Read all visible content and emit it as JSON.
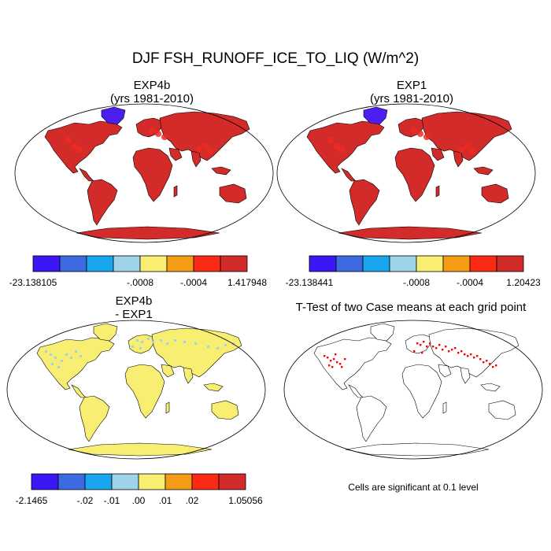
{
  "figure": {
    "title": "DJF FSH_RUNOFF_ICE_TO_LIQ (W/m^2)"
  },
  "panels": [
    {
      "id": "exp4b",
      "title_line1": "EXP4b",
      "title_line2": "(yrs 1981-2010)",
      "fill": "#d32a2a",
      "highlight": "#ee2a22",
      "greenland": "#4a1ff0",
      "colorbar": {
        "colors": [
          "#3b17f5",
          "#3d6ae0",
          "#1aa6ee",
          "#9fd3ea",
          "#f8ee72",
          "#f59c16",
          "#fb2a14",
          "#d12b2b"
        ],
        "labels": [
          "-23.138105",
          "-.0008",
          "-.0004",
          "1.417948"
        ]
      }
    },
    {
      "id": "exp1",
      "title_line1": "EXP1",
      "title_line2": "(yrs 1981-2010)",
      "fill": "#d32a2a",
      "highlight": "#ee2a22",
      "greenland": "#4a1ff0",
      "colorbar": {
        "colors": [
          "#3b17f5",
          "#3d6ae0",
          "#1aa6ee",
          "#9fd3ea",
          "#f8ee72",
          "#f59c16",
          "#fb2a14",
          "#d12b2b"
        ],
        "labels": [
          "-23.138441",
          "-.0008",
          "-.0004",
          "1.20423"
        ]
      }
    },
    {
      "id": "diff",
      "title_line1": "EXP4b",
      "title_line2": "- EXP1",
      "fill": "#f8ee72",
      "highlight": "#9fd3ea",
      "greenland": "#f8ee72",
      "colorbar": {
        "colors": [
          "#3b17f5",
          "#3d6ae0",
          "#1aa6ee",
          "#9fd3ea",
          "#f8ee72",
          "#f59c16",
          "#fb2a14",
          "#d12b2b"
        ],
        "labels": [
          "-2.1465",
          "-.02",
          "-.01",
          ".00",
          ".01",
          ".02",
          "1.05056"
        ]
      }
    },
    {
      "id": "ttest",
      "title_line1": "T-Test of two Case means at each grid point",
      "title_line2": "",
      "fill": "#ffffff",
      "highlight": "#ff0000",
      "greenland": "#ffffff",
      "note": "Cells are significant at 0.1 level"
    }
  ]
}
